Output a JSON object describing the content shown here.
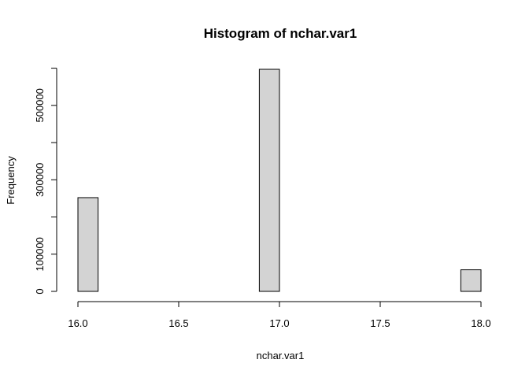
{
  "chart_data": {
    "type": "bar",
    "title": "Histogram of nchar.var1",
    "xlabel": "nchar.var1",
    "ylabel": "Frequency",
    "x_ticks": [
      "16.0",
      "16.5",
      "17.0",
      "17.5",
      "18.0"
    ],
    "y_ticks": [
      "0",
      "100000",
      "300000",
      "500000"
    ],
    "xlim": [
      16.0,
      18.0
    ],
    "ylim": [
      0,
      600000
    ],
    "bins": [
      {
        "start": 16.0,
        "end": 16.1,
        "count": 252000
      },
      {
        "start": 16.1,
        "end": 16.2,
        "count": 0
      },
      {
        "start": 16.2,
        "end": 16.3,
        "count": 0
      },
      {
        "start": 16.3,
        "end": 16.4,
        "count": 0
      },
      {
        "start": 16.4,
        "end": 16.5,
        "count": 0
      },
      {
        "start": 16.5,
        "end": 16.6,
        "count": 0
      },
      {
        "start": 16.6,
        "end": 16.7,
        "count": 0
      },
      {
        "start": 16.7,
        "end": 16.8,
        "count": 0
      },
      {
        "start": 16.8,
        "end": 16.9,
        "count": 0
      },
      {
        "start": 16.9,
        "end": 17.0,
        "count": 597000
      },
      {
        "start": 17.0,
        "end": 17.1,
        "count": 0
      },
      {
        "start": 17.1,
        "end": 17.2,
        "count": 0
      },
      {
        "start": 17.2,
        "end": 17.3,
        "count": 0
      },
      {
        "start": 17.3,
        "end": 17.4,
        "count": 0
      },
      {
        "start": 17.4,
        "end": 17.5,
        "count": 0
      },
      {
        "start": 17.5,
        "end": 17.6,
        "count": 0
      },
      {
        "start": 17.6,
        "end": 17.7,
        "count": 0
      },
      {
        "start": 17.7,
        "end": 17.8,
        "count": 0
      },
      {
        "start": 17.8,
        "end": 17.9,
        "count": 0
      },
      {
        "start": 17.9,
        "end": 18.0,
        "count": 58000
      }
    ],
    "bar_fill": "#d3d3d3",
    "grid": false,
    "legend": "none"
  }
}
